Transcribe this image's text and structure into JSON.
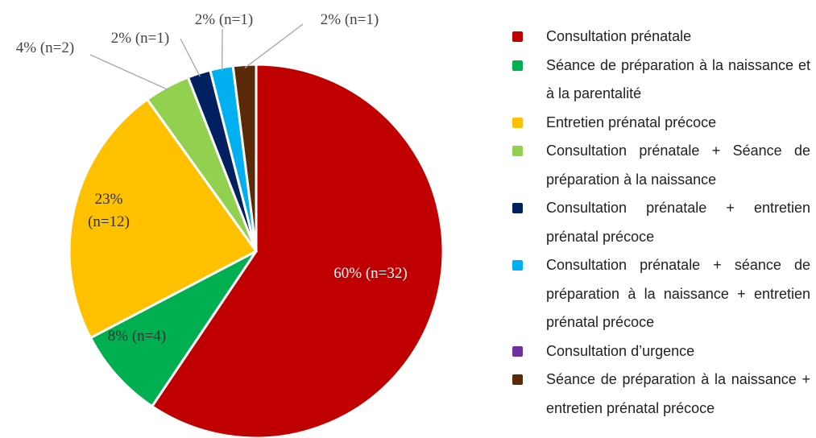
{
  "chart_data": {
    "type": "pie",
    "categories": [
      "Consultation prénatale",
      "Séance de préparation à la naissance et à la parentalité",
      "Entretien prénatal précoce",
      "Consultation prénatale + Séance de préparation à la naissance",
      "Consultation prénatale + entretien prénatal précoce",
      "Consultation prénatale + séance de préparation à la naissance + entretien prénatal précoce",
      "Consultation d’urgence",
      "Séance de préparation à la naissance + entretien prénatal précoce"
    ],
    "values": [
      60,
      8,
      23,
      4,
      2,
      2,
      0,
      2
    ],
    "value_labels": [
      "60% (n=32)",
      "8% (n=4)",
      "23% (n=12)",
      "4% (n=2)",
      "2% (n=1)",
      "2% (n=1)",
      null,
      "2% (n=1)"
    ],
    "colors": [
      "#c00000",
      "#00b050",
      "#ffc000",
      "#92d050",
      "#002060",
      "#00b0f0",
      "#7030a0",
      "#5a2a08"
    ],
    "legend": "right"
  }
}
